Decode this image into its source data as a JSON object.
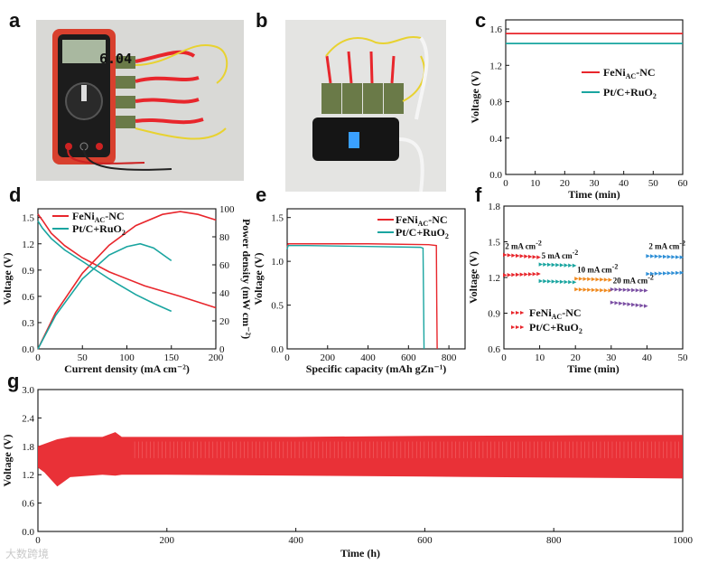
{
  "panels": {
    "a": "a",
    "b": "b",
    "c": "c",
    "d": "d",
    "e": "e",
    "f": "f",
    "g": "g"
  },
  "photos": {
    "a": {
      "meter_reading": "6.04"
    },
    "b": {}
  },
  "colors": {
    "red": "#e8262c",
    "teal": "#1aa5a0",
    "orange": "#f08a1f",
    "purple": "#7b4fa3",
    "blue": "#2f8fd6"
  },
  "watermark": "大数跨境",
  "chart_data": [
    {
      "id": "c",
      "type": "line",
      "xlabel": "Time (min)",
      "ylabel": "Voltage (V)",
      "xlim": [
        0,
        60
      ],
      "ylim": [
        0,
        1.7
      ],
      "xticks": [
        "0",
        "10",
        "20",
        "30",
        "40",
        "50",
        "60"
      ],
      "yticks": [
        "0.0",
        "0.4",
        "0.8",
        "1.2",
        "1.6"
      ],
      "series": [
        {
          "name": "FeNi",
          "sub": "AC",
          "suffix": "-NC",
          "color": "#e8262c",
          "x": [
            0,
            60
          ],
          "y": [
            1.55,
            1.55
          ]
        },
        {
          "name": "Pt/C+RuO",
          "sub": "2",
          "suffix": "",
          "color": "#1aa5a0",
          "x": [
            0,
            60
          ],
          "y": [
            1.44,
            1.44
          ]
        }
      ]
    },
    {
      "id": "d",
      "type": "line",
      "xlabel": "Current density (mA cm⁻²)",
      "ylabel": "Voltage (V)",
      "ylabel_right": "Power density (mW cm⁻²)",
      "xlim": [
        0,
        200
      ],
      "ylim": [
        0,
        1.6
      ],
      "ylim_right": [
        0,
        100
      ],
      "xticks": [
        "0",
        "50",
        "100",
        "150",
        "200"
      ],
      "yticks": [
        "0.0",
        "0.3",
        "0.6",
        "0.9",
        "1.2",
        "1.5"
      ],
      "yticks_right": [
        "0",
        "20",
        "40",
        "60",
        "80",
        "100"
      ],
      "series": [
        {
          "name": "FeNi",
          "sub": "AC",
          "suffix": "-NC",
          "color": "#e8262c",
          "kind": "voltage",
          "x": [
            0,
            5,
            15,
            30,
            50,
            80,
            120,
            160,
            200
          ],
          "y": [
            1.54,
            1.47,
            1.32,
            1.18,
            1.04,
            0.88,
            0.72,
            0.6,
            0.47
          ]
        },
        {
          "name": "FeNi-NC power",
          "color": "#e8262c",
          "kind": "power",
          "x": [
            0,
            20,
            50,
            80,
            110,
            140,
            160,
            180,
            200
          ],
          "y": [
            0,
            26,
            54,
            74,
            88,
            96,
            98,
            96,
            92
          ]
        },
        {
          "name": "Pt/C+RuO",
          "sub": "2",
          "suffix": "",
          "color": "#1aa5a0",
          "kind": "voltage",
          "x": [
            0,
            5,
            15,
            30,
            50,
            80,
            110,
            130,
            150
          ],
          "y": [
            1.46,
            1.38,
            1.26,
            1.13,
            1.0,
            0.8,
            0.62,
            0.52,
            0.43
          ]
        },
        {
          "name": "Pt/C+RuO2 power",
          "color": "#1aa5a0",
          "kind": "power",
          "x": [
            0,
            20,
            50,
            80,
            100,
            115,
            130,
            150
          ],
          "y": [
            0,
            24,
            50,
            67,
            73,
            75,
            72,
            63
          ]
        }
      ]
    },
    {
      "id": "e",
      "type": "line",
      "xlabel": "Specific capacity (mAh gZn⁻¹)",
      "ylabel": "Voltage (V)",
      "xlim": [
        0,
        880
      ],
      "ylim": [
        0,
        1.6
      ],
      "xticks": [
        "0",
        "200",
        "400",
        "600",
        "800"
      ],
      "yticks": [
        "0.0",
        "0.5",
        "1.0",
        "1.5"
      ],
      "series": [
        {
          "name": "FeNi",
          "sub": "AC",
          "suffix": "-NC",
          "color": "#e8262c",
          "x": [
            0,
            5,
            100,
            400,
            700,
            738,
            740,
            742
          ],
          "y": [
            1.16,
            1.2,
            1.2,
            1.2,
            1.19,
            1.18,
            0.5,
            0.0
          ]
        },
        {
          "name": "Pt/C+RuO",
          "sub": "2",
          "suffix": "",
          "color": "#1aa5a0",
          "x": [
            0,
            5,
            100,
            400,
            660,
            672,
            675,
            677
          ],
          "y": [
            1.14,
            1.18,
            1.18,
            1.17,
            1.16,
            1.15,
            0.5,
            0.0
          ]
        }
      ]
    },
    {
      "id": "f",
      "type": "scatter",
      "xlabel": "Time (min)",
      "ylabel": "Voltage (V)",
      "xlim": [
        0,
        50
      ],
      "ylim": [
        0.6,
        1.8
      ],
      "xticks": [
        "0",
        "10",
        "20",
        "30",
        "40",
        "50"
      ],
      "yticks": [
        "0.6",
        "0.9",
        "1.2",
        "1.5",
        "1.8"
      ],
      "legend": [
        {
          "name": "FeNi",
          "sub": "AC",
          "suffix": "-NC",
          "color": "#e8262c"
        },
        {
          "name": "Pt/C+RuO",
          "sub": "2",
          "suffix": "",
          "color": "#e8262c"
        }
      ],
      "segments": [
        {
          "x0": 0,
          "x1": 10,
          "y0": 1.39,
          "y1": 1.37,
          "color": "#e8262c"
        },
        {
          "x0": 0,
          "x1": 10,
          "y0": 1.22,
          "y1": 1.23,
          "color": "#e8262c"
        },
        {
          "x0": 10,
          "x1": 20,
          "y0": 1.31,
          "y1": 1.3,
          "color": "#1aa5a0"
        },
        {
          "x0": 10,
          "x1": 20,
          "y0": 1.17,
          "y1": 1.16,
          "color": "#1aa5a0"
        },
        {
          "x0": 20,
          "x1": 30,
          "y0": 1.19,
          "y1": 1.18,
          "color": "#f08a1f"
        },
        {
          "x0": 20,
          "x1": 30,
          "y0": 1.1,
          "y1": 1.09,
          "color": "#f08a1f"
        },
        {
          "x0": 30,
          "x1": 40,
          "y0": 1.1,
          "y1": 1.09,
          "color": "#7b4fa3"
        },
        {
          "x0": 30,
          "x1": 40,
          "y0": 0.99,
          "y1": 0.96,
          "color": "#7b4fa3"
        },
        {
          "x0": 40,
          "x1": 50,
          "y0": 1.38,
          "y1": 1.37,
          "color": "#2f8fd6"
        },
        {
          "x0": 40,
          "x1": 50,
          "y0": 1.23,
          "y1": 1.24,
          "color": "#2f8fd6"
        }
      ],
      "annotations": [
        {
          "text": "2 mA cm",
          "sup": "-2",
          "x": 0.3,
          "y": 1.44
        },
        {
          "text": "5 mA cm",
          "sup": "-2",
          "x": 10.5,
          "y": 1.36
        },
        {
          "text": "10 mA cm",
          "sup": "-2",
          "x": 20.5,
          "y": 1.24
        },
        {
          "text": "20 mA cm",
          "sup": "-2",
          "x": 30.5,
          "y": 1.15
        },
        {
          "text": "2 mA cm",
          "sup": "-2",
          "x": 40.5,
          "y": 1.44
        }
      ]
    },
    {
      "id": "g",
      "type": "area",
      "xlabel": "Time (h)",
      "ylabel": "Voltage (V)",
      "xlim": [
        0,
        1000
      ],
      "ylim": [
        0,
        3.0
      ],
      "xticks": [
        "0",
        "200",
        "400",
        "600",
        "800",
        "1000"
      ],
      "yticks": [
        "0.0",
        "0.6",
        "1.2",
        "1.8",
        "2.4",
        "3.0"
      ],
      "series": [
        {
          "name": "cycling",
          "color": "#e8262c",
          "x": [
            0,
            10,
            30,
            50,
            100,
            120,
            130,
            200,
            400,
            600,
            800,
            1000
          ],
          "upper": [
            1.8,
            1.85,
            1.95,
            2.0,
            2.0,
            2.1,
            2.0,
            2.0,
            2.0,
            2.02,
            2.03,
            2.04
          ],
          "lower": [
            1.35,
            1.25,
            0.95,
            1.15,
            1.2,
            1.18,
            1.2,
            1.2,
            1.18,
            1.16,
            1.14,
            1.12
          ]
        }
      ]
    }
  ]
}
